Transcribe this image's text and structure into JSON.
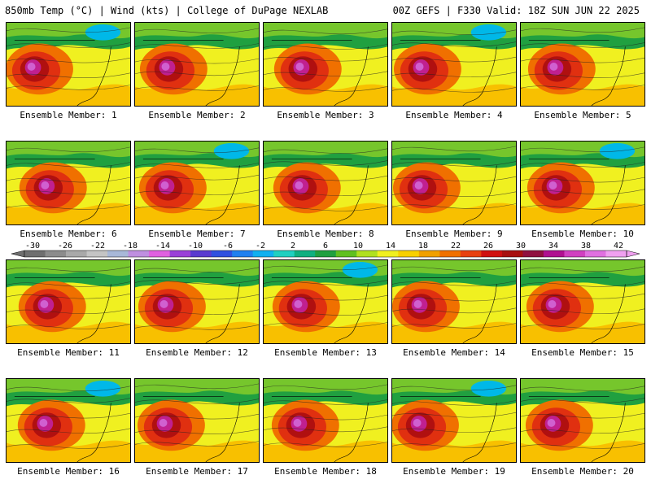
{
  "header": {
    "left_title": "850mb Temp (°C) | Wind (kts) | College of DuPage NEXLAB",
    "right_title": "00Z GEFS | F330 Valid: 18Z SUN JUN 22 2025"
  },
  "panels": [
    {
      "label": "Ensemble Member: 1"
    },
    {
      "label": "Ensemble Member: 2"
    },
    {
      "label": "Ensemble Member: 3"
    },
    {
      "label": "Ensemble Member: 4"
    },
    {
      "label": "Ensemble Member: 5"
    },
    {
      "label": "Ensemble Member: 6"
    },
    {
      "label": "Ensemble Member: 7"
    },
    {
      "label": "Ensemble Member: 8"
    },
    {
      "label": "Ensemble Member: 9"
    },
    {
      "label": "Ensemble Member: 10"
    },
    {
      "label": "Ensemble Member: 11"
    },
    {
      "label": "Ensemble Member: 12"
    },
    {
      "label": "Ensemble Member: 13"
    },
    {
      "label": "Ensemble Member: 14"
    },
    {
      "label": "Ensemble Member: 15"
    },
    {
      "label": "Ensemble Member: 16"
    },
    {
      "label": "Ensemble Member: 17"
    },
    {
      "label": "Ensemble Member: 18"
    },
    {
      "label": "Ensemble Member: 19"
    },
    {
      "label": "Ensemble Member: 20"
    }
  ],
  "colorbar": {
    "tick_labels": [
      "-30",
      "-26",
      "-22",
      "-18",
      "-14",
      "-10",
      "-6",
      "-2",
      "2",
      "6",
      "10",
      "14",
      "18",
      "22",
      "26",
      "30",
      "34",
      "38",
      "42"
    ],
    "colors": [
      "#6f6f6f",
      "#8c8c8c",
      "#a9a9a9",
      "#c4c4c4",
      "#a8b8d8",
      "#bf8fe0",
      "#e060e0",
      "#9a40d8",
      "#5a3ad0",
      "#3050e0",
      "#2080f0",
      "#10b0f0",
      "#20d0c0",
      "#10b080",
      "#20a040",
      "#60c020",
      "#b0e020",
      "#f0f020",
      "#f8d000",
      "#f0a000",
      "#f07000",
      "#e84010",
      "#d01010",
      "#a81010",
      "#901040",
      "#b01090",
      "#d040c0",
      "#e070e0",
      "#f0a0f0"
    ]
  },
  "map_palette": {
    "cold": "#00b8e8",
    "cool": "#20a040",
    "mild": "#b0e020",
    "warm": "#f0f020",
    "warmer": "#f8c000",
    "hot": "#f07000",
    "hotter": "#e03010",
    "very_hot": "#b01010",
    "extreme": "#c02090",
    "extreme2": "#d060d0"
  }
}
